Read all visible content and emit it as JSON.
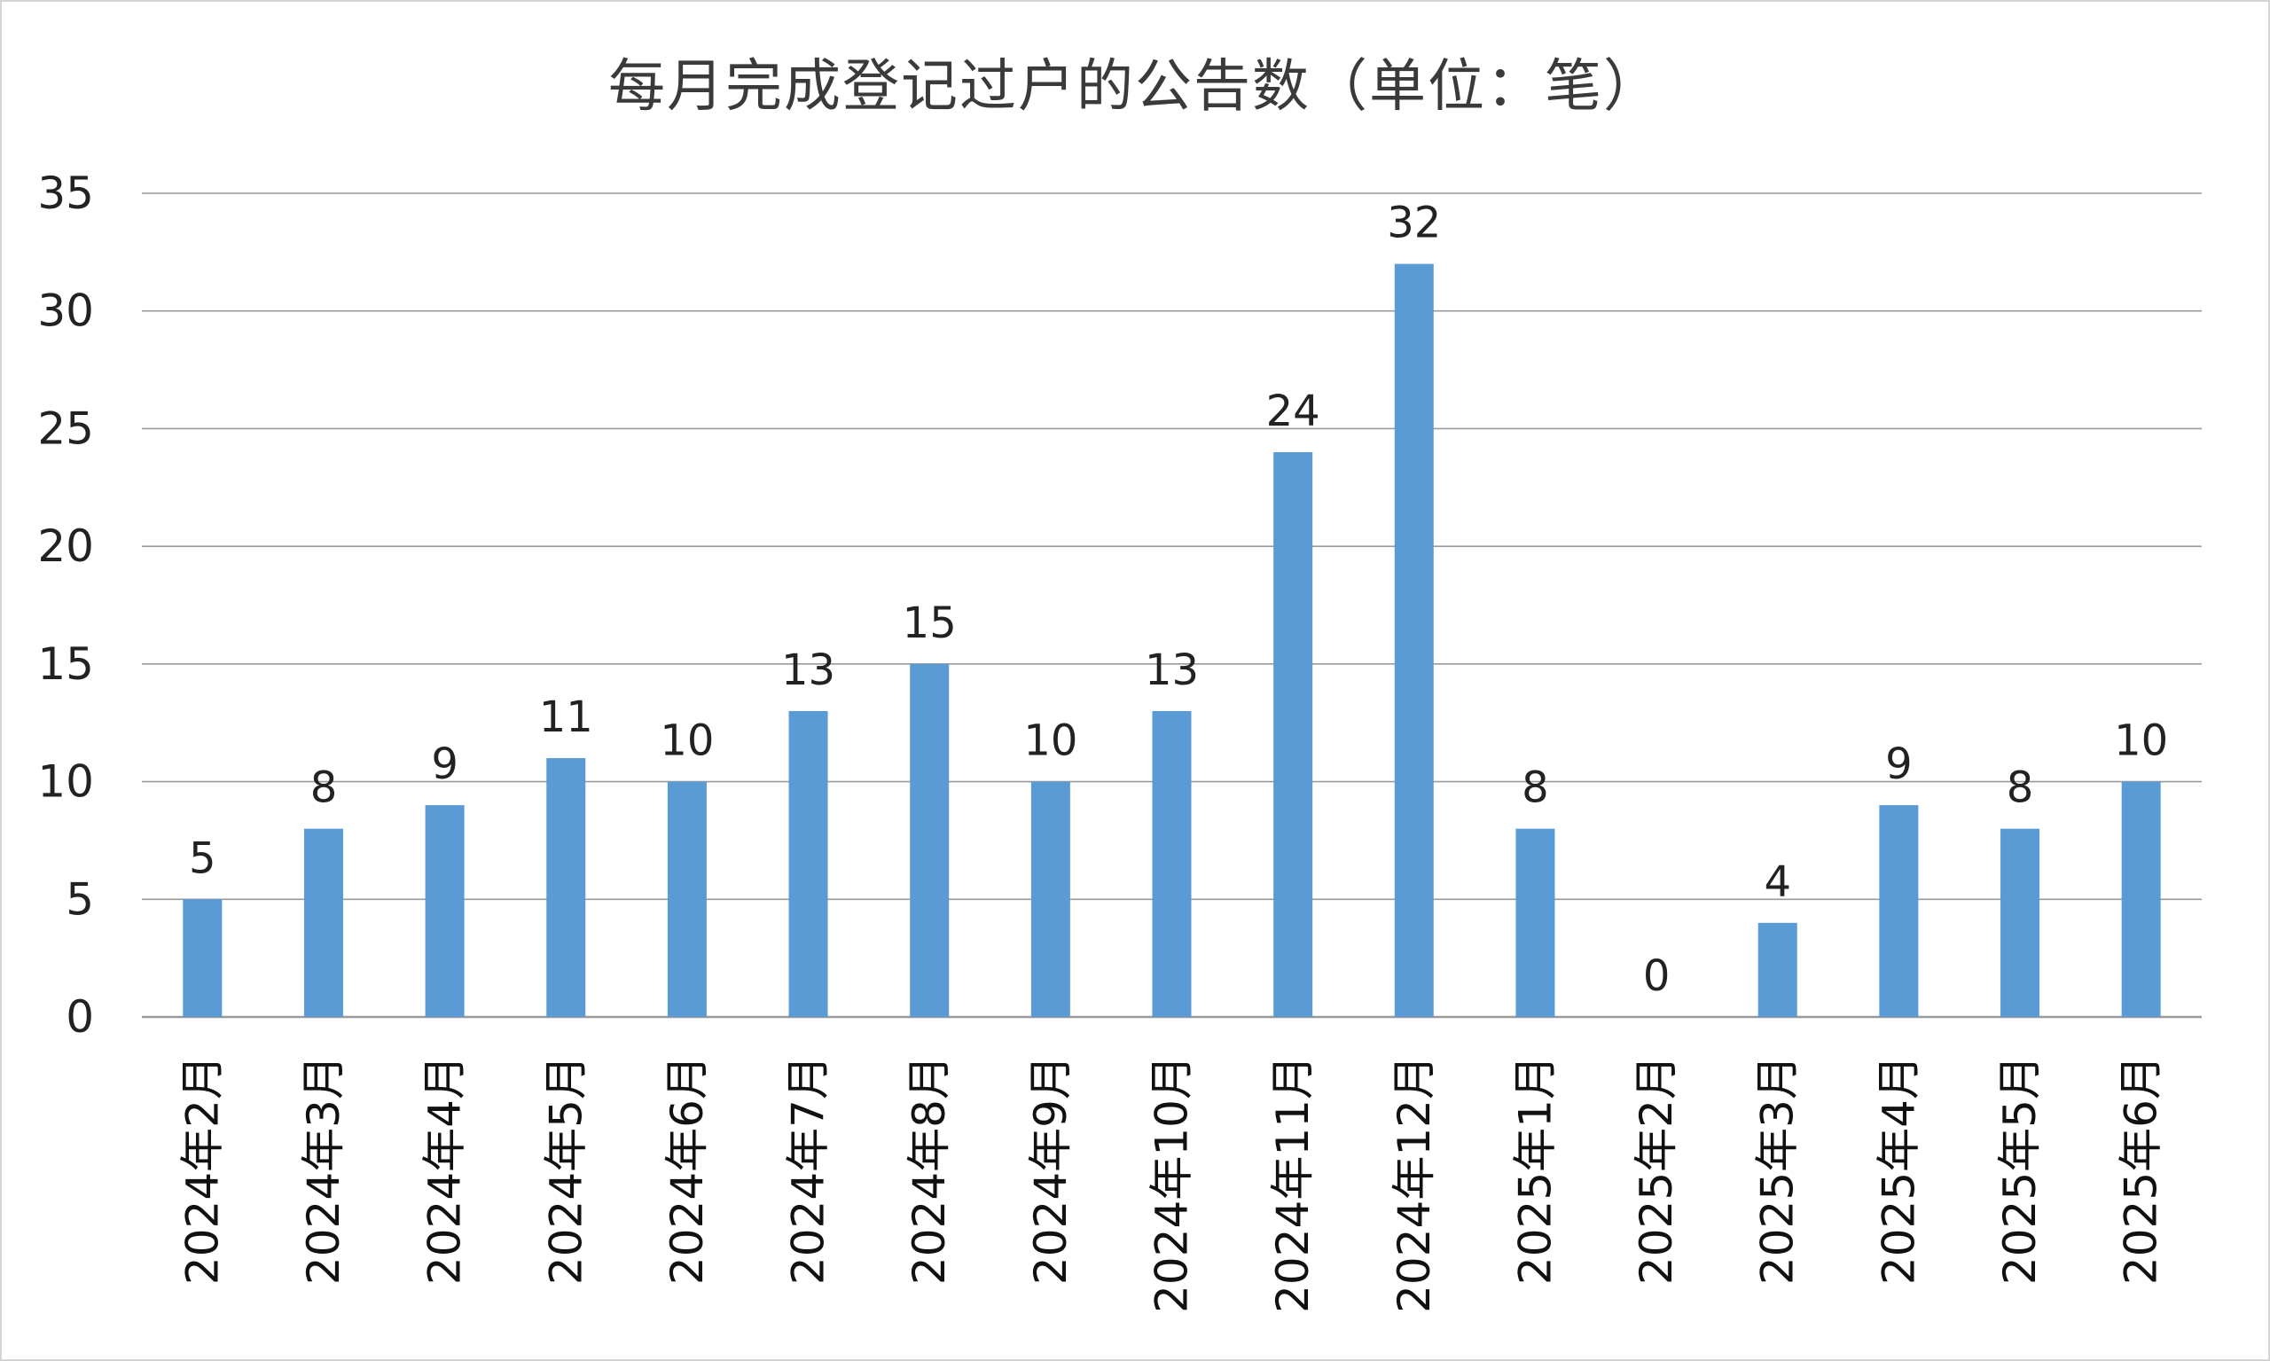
{
  "chart_data": {
    "type": "bar",
    "title": "每月完成登记过户的公告数（单位：笔）",
    "xlabel": "",
    "ylabel": "",
    "categories": [
      "2024年2月",
      "2024年3月",
      "2024年4月",
      "2024年5月",
      "2024年6月",
      "2024年7月",
      "2024年8月",
      "2024年9月",
      "2024年10月",
      "2024年11月",
      "2024年12月",
      "2025年1月",
      "2025年2月",
      "2025年3月",
      "2025年4月",
      "2025年5月",
      "2025年6月"
    ],
    "values": [
      5,
      8,
      9,
      11,
      10,
      13,
      15,
      10,
      13,
      24,
      32,
      8,
      0,
      4,
      9,
      8,
      10
    ],
    "ylim": [
      0,
      35
    ],
    "yticks": [
      0,
      5,
      10,
      15,
      20,
      25,
      30,
      35
    ],
    "grid": true,
    "legend": "none",
    "bar_color": "#5b9bd5",
    "grid_color": "#9a9a9a"
  }
}
